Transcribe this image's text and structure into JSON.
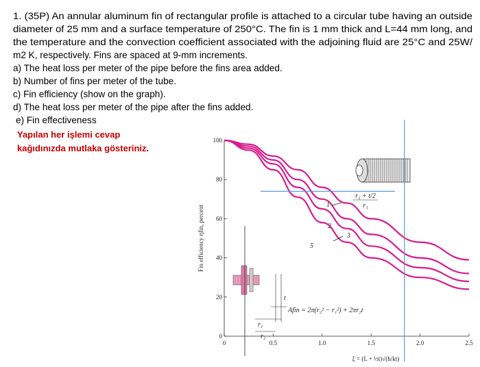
{
  "problem": {
    "lines": [
      "1. (35P) An annular aluminum fin of rectangular profile is attached to a circular tube having an outside",
      "diameter of 25 mm and a surface temperature of 250°C. The fin is 1 mm thick and L=44 mm long, and",
      "the temperature and the convection coefficient associated with the adjoining fluid are 25°C and 25W/",
      "m2 K, respectively. Fins are spaced at 9-mm increments."
    ],
    "parts": [
      "a) The heat loss per meter of the pipe before the fins area added.",
      "b) Number of fins per meter of the tube.",
      "c) Fin efficiency (show on the graph).",
      "d) The heat loss per meter of the pipe after the fins added.",
      "e) Fin effectiveness"
    ],
    "note": [
      "Yapılan her işlemi cevap",
      "kağıdınızda mutlaka gösteriniz."
    ]
  },
  "chart_data": {
    "type": "line",
    "y_label": "Fin efficiency ηfin, percent",
    "x_label": "ξ = (L + ½t)√(h/kt)",
    "area_formula": "Afin = 2π(r₂² − r₁²) + 2πr₂t",
    "legend_numerator": "r₂ + t/2",
    "legend_denominator": "r₁",
    "diagram_labels": [
      "t",
      "r₁",
      "r₂"
    ],
    "x": [
      0,
      0.25,
      0.5,
      0.75,
      1,
      1.25,
      1.5,
      2,
      2.5
    ],
    "series": [
      {
        "name": "1",
        "color": "#d81b8c",
        "values": [
          100,
          98,
          92,
          85,
          76,
          68,
          60,
          48,
          39
        ]
      },
      {
        "name": "2",
        "color": "#d81b8c",
        "values": [
          100,
          97,
          90,
          80,
          70,
          60,
          52,
          40,
          32
        ]
      },
      {
        "name": "3",
        "color": "#d81b8c",
        "values": [
          100,
          96,
          88,
          76,
          65,
          55,
          46,
          35,
          28
        ]
      },
      {
        "name": "5",
        "color": "#d81b8c",
        "values": [
          100,
          95,
          85,
          71,
          58,
          48,
          40,
          30,
          24
        ]
      }
    ],
    "guide_y": 74,
    "guide_x": 1.84,
    "guide_color": "#5b9bd5",
    "xlim": [
      0,
      2.5
    ],
    "ylim": [
      0,
      100
    ],
    "xticks": [
      0,
      {
        "value": 0.5,
        "label": "0.5"
      },
      {
        "value": 1,
        "label": "1.0"
      },
      {
        "value": 1.5,
        "label": "1.5"
      },
      {
        "value": 2,
        "label": "2.0"
      },
      {
        "value": 2.5,
        "label": "2.5"
      }
    ],
    "yticks": [
      0,
      20,
      40,
      60,
      80,
      100
    ]
  }
}
